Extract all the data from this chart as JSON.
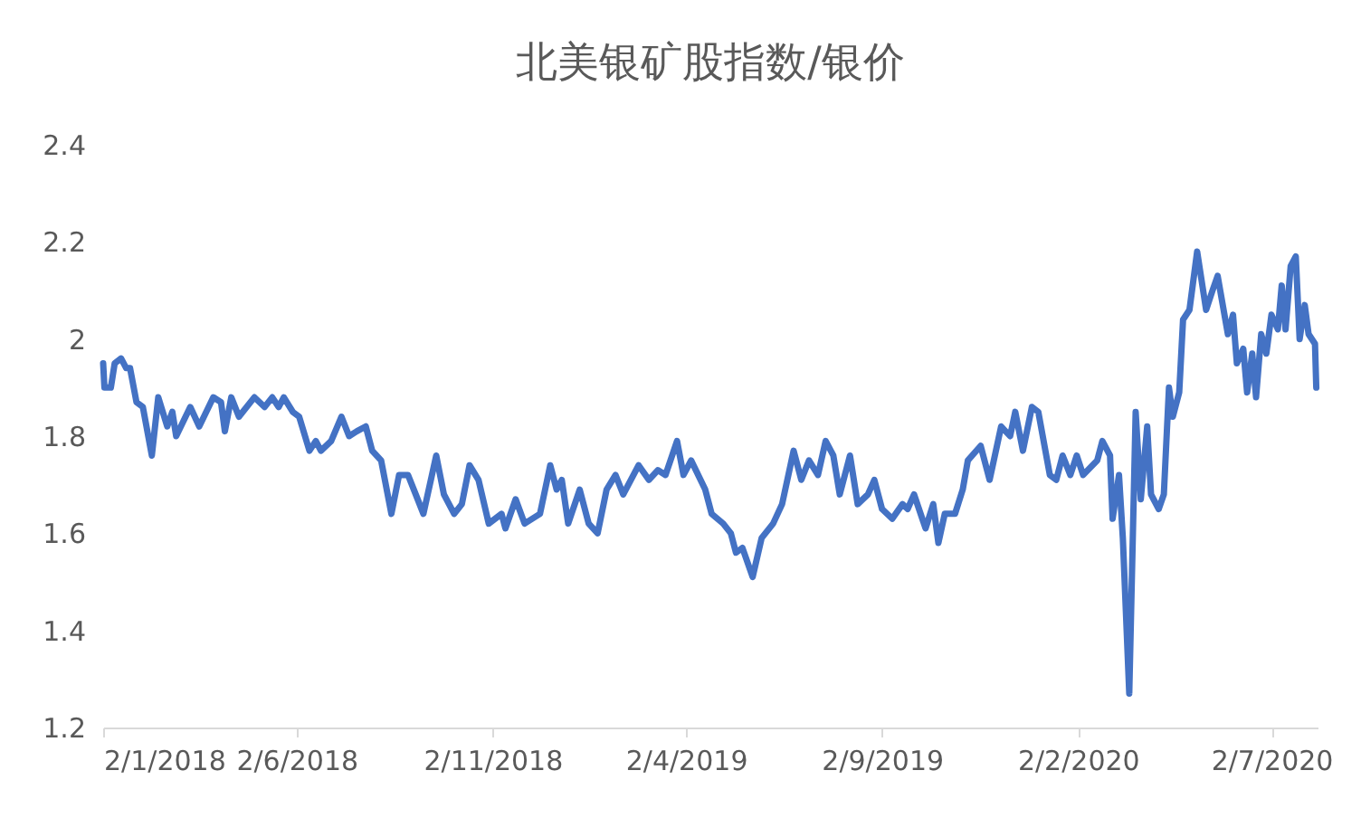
{
  "chart_data": {
    "type": "line",
    "title": "北美银矿股指数/银价",
    "xlim": [
      "2018-01-02",
      "2020-08-07"
    ],
    "xticks": [
      {
        "value": "2018-01-02",
        "label": "2/1/2018"
      },
      {
        "value": "2018-06-02",
        "label": "2/6/2018"
      },
      {
        "value": "2018-11-02",
        "label": "2/11/2018"
      },
      {
        "value": "2019-04-02",
        "label": "2/4/2019"
      },
      {
        "value": "2019-09-02",
        "label": "2/9/2019"
      },
      {
        "value": "2020-02-02",
        "label": "2/2/2020"
      },
      {
        "value": "2020-07-02",
        "label": "2/7/2020"
      }
    ],
    "ylim": [
      1.2,
      2.4
    ],
    "yticks": [
      1.2,
      1.4,
      1.6,
      1.8,
      2,
      2.2,
      2.4
    ],
    "grid": false,
    "marker": "none",
    "line_style": "solid",
    "series": [
      {
        "color": "#4472c4",
        "x": [
          "2018-01-02",
          "2018-01-03",
          "2018-01-08",
          "2018-01-11",
          "2018-01-16",
          "2018-01-20",
          "2018-01-23",
          "2018-01-28",
          "2018-02-02",
          "2018-02-09",
          "2018-02-14",
          "2018-02-21",
          "2018-02-25",
          "2018-02-28",
          "2018-03-11",
          "2018-03-18",
          "2018-03-29",
          "2018-04-04",
          "2018-04-07",
          "2018-04-12",
          "2018-04-18",
          "2018-04-30",
          "2018-05-08",
          "2018-05-14",
          "2018-05-19",
          "2018-05-23",
          "2018-05-30",
          "2018-06-04",
          "2018-06-12",
          "2018-06-17",
          "2018-06-21",
          "2018-06-29",
          "2018-07-07",
          "2018-07-13",
          "2018-07-19",
          "2018-07-26",
          "2018-07-31",
          "2018-08-07",
          "2018-08-15",
          "2018-08-21",
          "2018-08-28",
          "2018-09-03",
          "2018-09-09",
          "2018-09-19",
          "2018-09-25",
          "2018-10-03",
          "2018-10-09",
          "2018-10-15",
          "2018-10-22",
          "2018-10-30",
          "2018-11-09",
          "2018-11-12",
          "2018-11-20",
          "2018-11-27",
          "2018-12-09",
          "2018-12-17",
          "2018-12-22",
          "2018-12-26",
          "2018-12-31",
          "2019-01-09",
          "2019-01-16",
          "2019-01-23",
          "2019-01-30",
          "2019-02-06",
          "2019-02-12",
          "2019-02-24",
          "2019-03-04",
          "2019-03-11",
          "2019-03-17",
          "2019-03-26",
          "2019-03-31",
          "2019-04-06",
          "2019-04-17",
          "2019-04-22",
          "2019-05-01",
          "2019-05-07",
          "2019-05-11",
          "2019-05-16",
          "2019-05-24",
          "2019-05-31",
          "2019-06-09",
          "2019-06-16",
          "2019-06-25",
          "2019-07-01",
          "2019-07-07",
          "2019-07-14",
          "2019-07-20",
          "2019-07-26",
          "2019-07-31",
          "2019-08-08",
          "2019-08-14",
          "2019-08-22",
          "2019-08-27",
          "2019-09-02",
          "2019-09-10",
          "2019-09-18",
          "2019-09-22",
          "2019-09-27",
          "2019-10-06",
          "2019-10-12",
          "2019-10-16",
          "2019-10-21",
          "2019-10-29",
          "2019-11-04",
          "2019-11-08",
          "2019-11-18",
          "2019-11-25",
          "2019-12-04",
          "2019-12-11",
          "2019-12-15",
          "2019-12-21",
          "2019-12-28",
          "2020-01-02",
          "2020-01-11",
          "2020-01-16",
          "2020-01-21",
          "2020-01-27",
          "2020-02-01",
          "2020-02-06",
          "2020-02-17",
          "2020-02-21",
          "2020-02-27",
          "2020-02-29",
          "2020-03-05",
          "2020-03-08",
          "2020-03-13",
          "2020-03-18",
          "2020-03-22",
          "2020-03-27",
          "2020-03-30",
          "2020-04-05",
          "2020-04-09",
          "2020-04-13",
          "2020-04-16",
          "2020-04-21",
          "2020-04-24",
          "2020-04-29",
          "2020-05-05",
          "2020-05-12",
          "2020-05-17",
          "2020-05-21",
          "2020-05-29",
          "2020-06-02",
          "2020-06-05",
          "2020-06-10",
          "2020-06-13",
          "2020-06-17",
          "2020-06-20",
          "2020-06-24",
          "2020-06-28",
          "2020-07-02",
          "2020-07-07",
          "2020-07-10",
          "2020-07-13",
          "2020-07-17",
          "2020-07-21",
          "2020-07-24",
          "2020-07-28",
          "2020-07-31",
          "2020-08-05",
          "2020-08-06"
        ],
        "values": [
          1.95,
          1.9,
          1.9,
          1.95,
          1.96,
          1.94,
          1.94,
          1.87,
          1.86,
          1.76,
          1.88,
          1.82,
          1.85,
          1.8,
          1.86,
          1.82,
          1.88,
          1.87,
          1.81,
          1.88,
          1.84,
          1.88,
          1.86,
          1.88,
          1.86,
          1.88,
          1.85,
          1.84,
          1.77,
          1.79,
          1.77,
          1.79,
          1.84,
          1.8,
          1.81,
          1.82,
          1.77,
          1.75,
          1.64,
          1.72,
          1.72,
          1.68,
          1.64,
          1.76,
          1.68,
          1.64,
          1.66,
          1.74,
          1.71,
          1.62,
          1.64,
          1.61,
          1.67,
          1.62,
          1.64,
          1.74,
          1.69,
          1.71,
          1.62,
          1.69,
          1.62,
          1.6,
          1.69,
          1.72,
          1.68,
          1.74,
          1.71,
          1.73,
          1.72,
          1.79,
          1.72,
          1.75,
          1.69,
          1.64,
          1.62,
          1.6,
          1.56,
          1.57,
          1.51,
          1.59,
          1.62,
          1.66,
          1.77,
          1.71,
          1.75,
          1.72,
          1.79,
          1.76,
          1.68,
          1.76,
          1.66,
          1.68,
          1.71,
          1.65,
          1.63,
          1.66,
          1.65,
          1.68,
          1.61,
          1.66,
          1.58,
          1.64,
          1.64,
          1.69,
          1.75,
          1.78,
          1.71,
          1.82,
          1.8,
          1.85,
          1.77,
          1.86,
          1.85,
          1.72,
          1.71,
          1.76,
          1.72,
          1.76,
          1.72,
          1.75,
          1.79,
          1.76,
          1.63,
          1.72,
          1.59,
          1.27,
          1.85,
          1.67,
          1.82,
          1.68,
          1.65,
          1.68,
          1.9,
          1.84,
          1.89,
          2.04,
          2.06,
          2.18,
          2.06,
          2.1,
          2.13,
          2.01,
          2.05,
          1.95,
          1.98,
          1.89,
          1.97,
          1.88,
          2.01,
          1.97,
          2.05,
          2.02,
          2.11,
          2.02,
          2.15,
          2.17,
          2.0,
          2.07,
          2.01,
          1.99,
          1.9
        ]
      }
    ]
  }
}
